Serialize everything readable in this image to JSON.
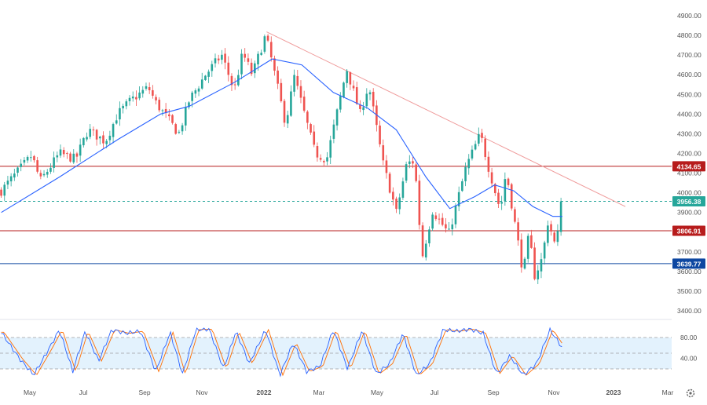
{
  "colors": {
    "up": "#26a69a",
    "down": "#ef5350",
    "ma": "#2962ff",
    "trendline": "#ef9a9a",
    "resistance": "#b71c1c",
    "support": "#0d47a1",
    "current": "#26a69a",
    "stoch_k": "#2962ff",
    "stoch_d": "#ff6d00",
    "stoch_band": "#e3f2fd",
    "axis_text": "#555555",
    "separator": "#e0e3eb"
  },
  "chart_data": [
    {
      "type": "candlestick",
      "title": "",
      "xlabel": "",
      "ylabel": "",
      "ylim": [
        3400,
        4900
      ],
      "y_ticks": [
        "3400.00",
        "3500.00",
        "3600.00",
        "3700.00",
        "3800.00",
        "3900.00",
        "4000.00",
        "4100.00",
        "4200.00",
        "4300.00",
        "4400.00",
        "4500.00",
        "4600.00",
        "4700.00",
        "4800.00",
        "4900.00"
      ],
      "x_ticks": [
        "May",
        "Jul",
        "Sep",
        "Nov",
        "2022",
        "Mar",
        "May",
        "Jul",
        "Sep",
        "Nov",
        "2023",
        "Mar"
      ],
      "price_path": {
        "x": [
          "2021-04-01",
          "2021-05-03",
          "2021-05-12",
          "2021-06-01",
          "2021-06-18",
          "2021-07-01",
          "2021-07-19",
          "2021-08-01",
          "2021-08-15",
          "2021-09-02",
          "2021-09-10",
          "2021-10-04",
          "2021-10-15",
          "2021-11-01",
          "2021-11-18",
          "2021-12-01",
          "2021-12-10",
          "2021-12-20",
          "2022-01-03",
          "2022-01-10",
          "2022-01-24",
          "2022-02-02",
          "2022-02-24",
          "2022-03-08",
          "2022-03-29",
          "2022-04-12",
          "2022-04-21",
          "2022-05-06",
          "2022-05-20",
          "2022-05-31",
          "2022-06-08",
          "2022-06-16",
          "2022-06-27",
          "2022-07-14",
          "2022-08-01",
          "2022-08-16",
          "2022-08-24",
          "2022-09-06",
          "2022-09-12",
          "2022-09-30",
          "2022-10-06",
          "2022-10-12",
          "2022-10-20",
          "2022-10-26",
          "2022-11-03",
          "2022-11-10"
        ],
        "y": [
          4010,
          4190,
          4060,
          4200,
          4170,
          4320,
          4260,
          4400,
          4470,
          4536,
          4458,
          4300,
          4470,
          4600,
          4700,
          4520,
          4710,
          4600,
          4800,
          4660,
          4350,
          4590,
          4200,
          4170,
          4630,
          4400,
          4550,
          4150,
          3900,
          4150,
          4160,
          3670,
          3910,
          3790,
          4130,
          4300,
          4140,
          3910,
          4110,
          3590,
          3790,
          3577,
          3670,
          3860,
          3720,
          3956.38
        ]
      },
      "moving_average": {
        "x": [
          "2021-04-01",
          "2021-06-01",
          "2021-08-01",
          "2021-09-15",
          "2021-10-15",
          "2021-12-01",
          "2022-01-10",
          "2022-02-10",
          "2022-03-15",
          "2022-04-20",
          "2022-05-20",
          "2022-06-20",
          "2022-07-15",
          "2022-08-10",
          "2022-08-31",
          "2022-09-20",
          "2022-10-10",
          "2022-10-31",
          "2022-11-10"
        ],
        "y": [
          3900,
          4080,
          4270,
          4400,
          4440,
          4560,
          4680,
          4650,
          4510,
          4430,
          4320,
          4080,
          3920,
          3980,
          4040,
          4010,
          3930,
          3880,
          3880
        ]
      },
      "trendline": {
        "x": [
          "2022-01-04",
          "2023-01-15"
        ],
        "y": [
          4818,
          3930
        ]
      },
      "levels": [
        {
          "name": "resistance",
          "value": 4134.65,
          "label": "4134.65"
        },
        {
          "name": "current",
          "value": 3956.38,
          "label": "3956.38"
        },
        {
          "name": "support-1",
          "value": 3806.91,
          "label": "3806.91"
        },
        {
          "name": "support-2",
          "value": 3639.77,
          "label": "3639.77"
        }
      ]
    },
    {
      "type": "line",
      "title": "",
      "ylim": [
        0,
        100
      ],
      "y_ticks": [
        "80.00",
        "40.00"
      ],
      "band": [
        20,
        80
      ],
      "middle": 50,
      "series": [
        {
          "x": [
            "2021-04-01",
            "2021-04-20",
            "2021-05-05",
            "2021-05-20",
            "2021-06-01",
            "2021-06-15",
            "2021-06-28",
            "2021-07-12",
            "2021-07-26",
            "2021-08-10",
            "2021-08-25",
            "2021-09-10",
            "2021-09-25",
            "2021-10-08",
            "2021-10-22",
            "2021-11-05",
            "2021-11-20",
            "2021-12-03",
            "2021-12-17",
            "2022-01-03",
            "2022-01-18",
            "2022-02-01",
            "2022-02-15",
            "2022-03-01",
            "2022-03-15",
            "2022-03-30",
            "2022-04-14",
            "2022-04-29",
            "2022-05-13",
            "2022-05-27",
            "2022-06-10",
            "2022-06-24",
            "2022-07-08",
            "2022-07-22",
            "2022-08-05",
            "2022-08-19",
            "2022-09-02",
            "2022-09-16",
            "2022-09-30",
            "2022-10-14",
            "2022-10-28",
            "2022-11-10"
          ],
          "y": [
            90,
            40,
            8,
            55,
            95,
            15,
            92,
            35,
            95,
            88,
            92,
            15,
            90,
            10,
            95,
            96,
            20,
            92,
            30,
            95,
            8,
            70,
            15,
            25,
            95,
            20,
            94,
            10,
            30,
            88,
            8,
            30,
            95,
            92,
            96,
            88,
            10,
            45,
            8,
            30,
            95,
            60
          ]
        }
      ]
    }
  ]
}
